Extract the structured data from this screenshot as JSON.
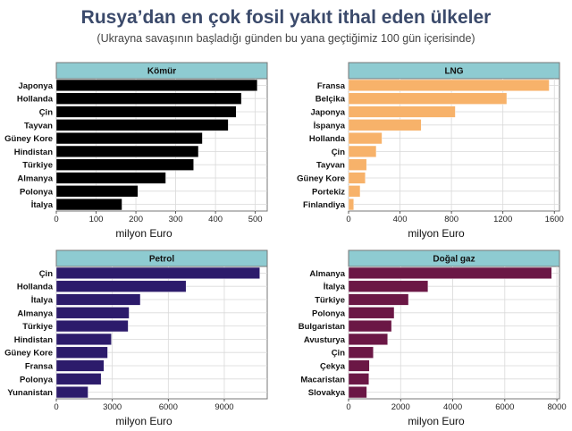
{
  "header": {
    "title": "Rusya’dan en çok fosil yakıt ithal eden ülkeler",
    "subtitle": "(Ukrayna savaşının başladığı günden bu yana geçtiğimiz 100 gün içerisinde)"
  },
  "colors": {
    "strip": "#8ecbd1",
    "grid": "#d9d9d9",
    "panel_border": "#777777"
  },
  "chart_data": [
    {
      "type": "bar",
      "orientation": "horizontal",
      "panel_title": "Kömür",
      "color": "#000000",
      "categories": [
        "Japonya",
        "Hollanda",
        "Çin",
        "Tayvan",
        "Güney Kore",
        "Hindistan",
        "Türkiye",
        "Almanya",
        "Polonya",
        "İtalya"
      ],
      "values": [
        505,
        465,
        452,
        432,
        367,
        357,
        345,
        275,
        205,
        165
      ],
      "xlabel": "milyon Euro",
      "xlim": [
        0,
        530
      ],
      "xticks": [
        0,
        100,
        200,
        300,
        400,
        500
      ],
      "grid": true
    },
    {
      "type": "bar",
      "orientation": "horizontal",
      "panel_title": "LNG",
      "color": "#f7b26a",
      "categories": [
        "Fransa",
        "Belçika",
        "Japonya",
        "İspanya",
        "Hollanda",
        "Çin",
        "Tayvan",
        "Güney Kore",
        "Portekiz",
        "Finlandiya"
      ],
      "values": [
        1560,
        1230,
        830,
        565,
        260,
        215,
        140,
        130,
        90,
        40
      ],
      "xlabel": "milyon Euro",
      "xlim": [
        0,
        1640
      ],
      "xticks": [
        0,
        400,
        800,
        1200,
        1600
      ],
      "grid": true
    },
    {
      "type": "bar",
      "orientation": "horizontal",
      "panel_title": "Petrol",
      "color": "#2c1b6b",
      "categories": [
        "Çin",
        "Hollanda",
        "İtalya",
        "Almanya",
        "Türkiye",
        "Hindistan",
        "Güney Kore",
        "Fransa",
        "Polonya",
        "Yunanistan"
      ],
      "values": [
        10900,
        6950,
        4500,
        3900,
        3850,
        2950,
        2750,
        2550,
        2400,
        1700
      ],
      "xlabel": "milyon Euro",
      "xlim": [
        0,
        11300
      ],
      "xticks": [
        0,
        3000,
        6000,
        9000
      ],
      "grid": true
    },
    {
      "type": "bar",
      "orientation": "horizontal",
      "panel_title": "Doğal gaz",
      "color": "#6b1745",
      "categories": [
        "Almanya",
        "İtalya",
        "Türkiye",
        "Polonya",
        "Bulgaristan",
        "Avusturya",
        "Çin",
        "Çekya",
        "Macaristan",
        "Slovakya"
      ],
      "values": [
        7800,
        3050,
        2300,
        1750,
        1650,
        1500,
        950,
        800,
        780,
        700
      ],
      "xlabel": "milyon Euro",
      "xlim": [
        0,
        8100
      ],
      "xticks": [
        0,
        2000,
        4000,
        6000,
        8000
      ],
      "grid": true
    }
  ]
}
